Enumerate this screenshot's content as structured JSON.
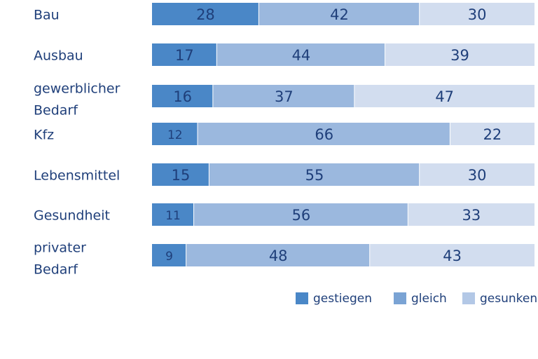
{
  "chart_data": {
    "type": "bar",
    "orientation": "horizontal",
    "stacked": true,
    "normalized_to": 100,
    "categories": [
      [
        "Bau"
      ],
      [
        "Ausbau"
      ],
      [
        "gewerblicher",
        "Bedarf"
      ],
      [
        "Kfz"
      ],
      [
        "Lebensmittel"
      ],
      [
        "Gesundheit"
      ],
      [
        "privater",
        "Bedarf"
      ]
    ],
    "series": [
      {
        "name": "gestiegen",
        "color": "#4a87c7",
        "values": [
          28,
          17,
          16,
          12,
          15,
          11,
          9
        ]
      },
      {
        "name": "gleich",
        "color": "#9bb8de",
        "values": [
          42,
          44,
          37,
          66,
          55,
          56,
          48
        ]
      },
      {
        "name": "gesunken",
        "color": "#d2ddef",
        "values": [
          30,
          39,
          47,
          22,
          30,
          33,
          43
        ]
      }
    ],
    "legend": {
      "placement": "bottom-right",
      "swatch_colors": [
        "#4a87c7",
        "#7aa3d4",
        "#b3c8e6"
      ]
    },
    "grid": false,
    "text_color": "#1f3f7a"
  }
}
